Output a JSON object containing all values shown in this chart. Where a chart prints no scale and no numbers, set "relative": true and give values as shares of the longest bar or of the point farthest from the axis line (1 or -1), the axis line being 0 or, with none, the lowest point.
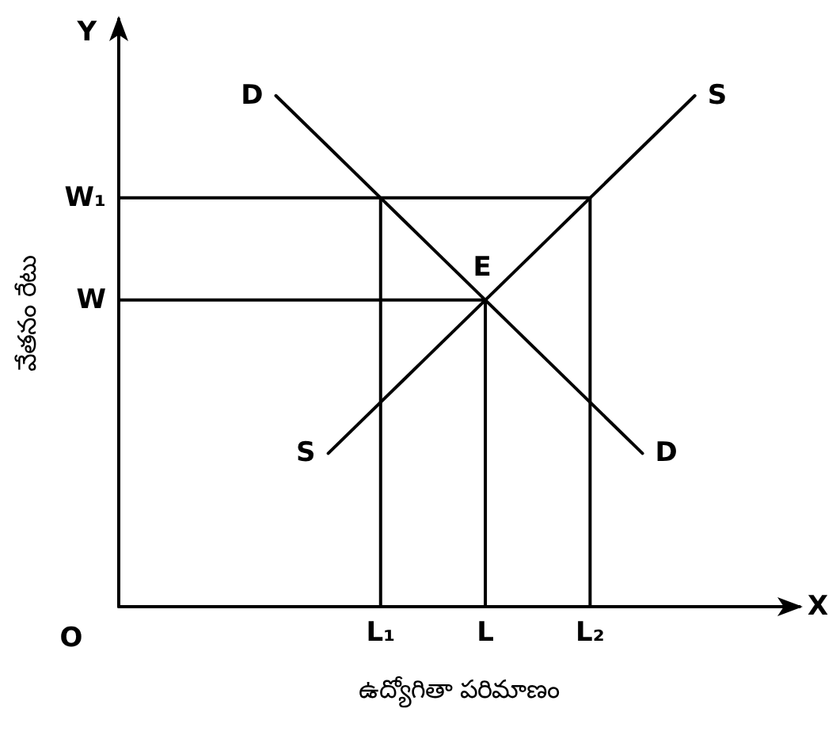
{
  "chart_data": {
    "type": "line",
    "relative": true,
    "xlabel": "ఉద్యోగితా పరిమాణం",
    "ylabel": "వేతనం రేటు",
    "categories": [
      null,
      null,
      null,
      null,
      null,
      "L₁",
      null,
      "L",
      null,
      "L₂",
      null,
      null,
      null,
      null
    ],
    "grid": false,
    "legend": false,
    "marker": "none",
    "line_style": "solid",
    "series": [
      {
        "name": "D",
        "color": "#000000",
        "values": [
          null,
          null,
          null,
          1.0,
          0.9,
          0.8,
          0.7,
          0.6,
          0.5,
          0.4,
          0.3,
          null,
          null,
          null
        ]
      },
      {
        "name": "S",
        "color": "#000000",
        "values": [
          null,
          null,
          null,
          null,
          0.3,
          0.4,
          0.5,
          0.6,
          0.7,
          0.8,
          0.9,
          1.0,
          null,
          null
        ]
      },
      {
        "type": "step",
        "name": "W₁",
        "color": "#000000",
        "values": [
          0.8,
          0.8,
          0.8,
          0.8,
          0.8,
          0,
          null,
          null,
          null,
          null,
          null,
          null,
          null,
          null
        ]
      },
      {
        "type": "step",
        "color": "#000000",
        "values": [
          null,
          null,
          null,
          null,
          null,
          0.8,
          0.8,
          0.8,
          0.8,
          0,
          null,
          null,
          null,
          null
        ]
      },
      {
        "type": "step",
        "name": "W",
        "color": "#000000",
        "values": [
          0.6,
          0.6,
          0.6,
          0.6,
          0.6,
          0.6,
          0.6,
          0,
          null,
          null,
          null,
          null,
          null,
          null
        ]
      }
    ],
    "annotations": [
      {
        "text": "E",
        "x": "L",
        "y": 0.6
      },
      "O",
      "X",
      "Y"
    ]
  }
}
